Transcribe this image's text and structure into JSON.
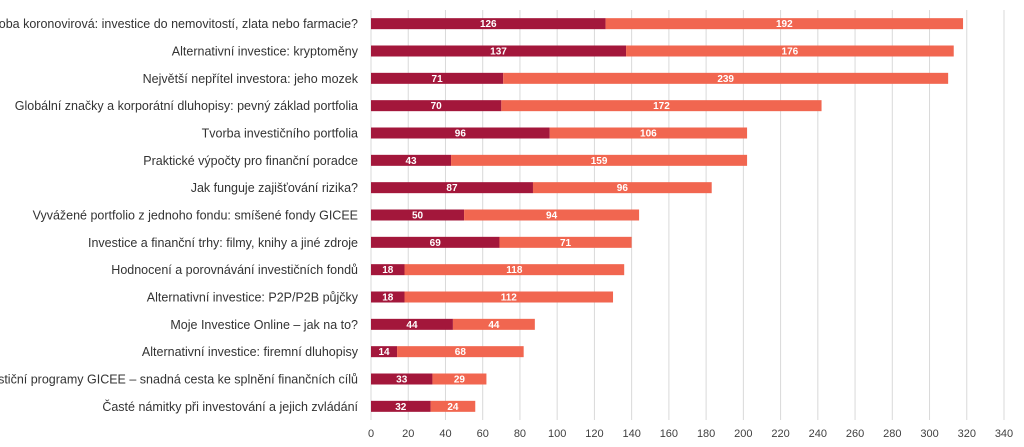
{
  "chart_data": {
    "type": "bar",
    "orientation": "horizontal",
    "stacked": true,
    "title": "",
    "xlabel": "",
    "ylabel": "",
    "xlim": [
      0,
      340
    ],
    "xticks": [
      0,
      20,
      40,
      60,
      80,
      100,
      120,
      140,
      160,
      180,
      200,
      220,
      240,
      260,
      280,
      300,
      320,
      340
    ],
    "grid": true,
    "legend": "none",
    "colors": [
      "#a3173b",
      "#f16650"
    ],
    "categories": [
      "Doba koronovirová: investice do nemovitostí, zlata nebo farmacie?",
      "Alternativní investice: kryptoměny",
      "Největší nepřítel investora: jeho mozek",
      "Globální značky a korporátní dluhopisy: pevný základ portfolia",
      "Tvorba investičního portfolia",
      "Praktické výpočty pro finanční poradce",
      "Jak funguje zajišťování rizika?",
      "Vyvážené portfolio z jednoho fondu: smíšené fondy GICEE",
      "Investice a finanční trhy: filmy, knihy a jiné zdroje",
      "Hodnocení a porovnávání investičních fondů",
      "Alternativní investice: P2P/P2B půjčky",
      "Moje Investice Online – jak na to?",
      "Alternativní investice: firemní dluhopisy",
      "Investiční programy GICEE – snadná cesta ke splnění finančních cílů",
      "Časté námitky při investování a jejich zvládání"
    ],
    "series": [
      {
        "name": "Series 1",
        "values": [
          126,
          137,
          71,
          70,
          96,
          43,
          87,
          50,
          69,
          18,
          18,
          44,
          14,
          33,
          32
        ]
      },
      {
        "name": "Series 2",
        "values": [
          192,
          176,
          239,
          172,
          106,
          159,
          96,
          94,
          71,
          118,
          112,
          44,
          68,
          29,
          24
        ]
      }
    ]
  }
}
